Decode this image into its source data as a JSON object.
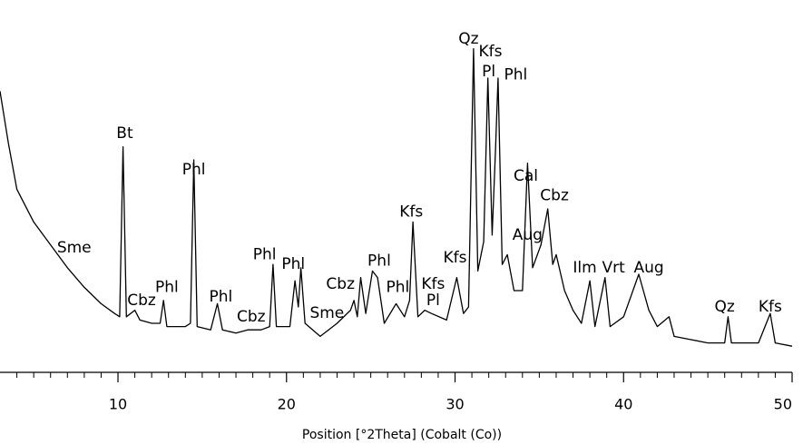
{
  "chart_data": {
    "type": "line",
    "xlabel": "Position [°2Theta] (Cobalt (Co))",
    "xlim": [
      3,
      50
    ],
    "xticks": [
      10,
      20,
      30,
      40,
      50
    ],
    "minor_xticks": [
      4,
      5,
      6,
      7,
      8,
      9,
      11,
      12,
      13,
      14,
      15,
      16,
      17,
      18,
      19,
      21,
      22,
      23,
      24,
      25,
      26,
      27,
      28,
      29,
      31,
      32,
      33,
      34,
      35,
      36,
      37,
      38,
      39,
      41,
      42,
      43,
      44,
      45,
      46,
      47,
      48,
      49
    ],
    "ylim": [
      0,
      110
    ],
    "color": "#000000",
    "x": [
      3,
      3.5,
      4,
      5,
      6,
      7,
      8,
      9,
      9.8,
      10.1,
      10.3,
      10.5,
      11,
      11.3,
      12,
      12.5,
      12.7,
      12.9,
      14,
      14.3,
      14.5,
      14.7,
      15.5,
      15.9,
      16.2,
      17,
      17.7,
      18.5,
      19,
      19.2,
      19.4,
      20.2,
      20.5,
      20.7,
      20.85,
      21.1,
      22,
      23,
      23.8,
      24.0,
      24.2,
      24.4,
      24.7,
      25.1,
      25.4,
      25.8,
      26.5,
      27,
      27.3,
      27.5,
      27.8,
      28.2,
      28.6,
      29.5,
      30.1,
      30.5,
      30.8,
      31.1,
      31.35,
      31.7,
      31.95,
      32.2,
      32.4,
      32.55,
      32.8,
      33.1,
      33.5,
      34.0,
      34.3,
      34.6,
      35.1,
      35.5,
      35.8,
      36,
      36.5,
      37,
      37.5,
      38,
      38.3,
      38.9,
      39.2,
      40,
      40.9,
      41.5,
      42,
      42.7,
      43,
      44,
      45,
      46,
      46.2,
      46.4,
      47,
      48,
      48.7,
      49,
      50
    ],
    "values": [
      86,
      70,
      56,
      46,
      39,
      32,
      26,
      21,
      18,
      17,
      69,
      17,
      19,
      16,
      15,
      15,
      22,
      14,
      14,
      15,
      65,
      14,
      13,
      21,
      13,
      12,
      13,
      13,
      14,
      33,
      14,
      14,
      28,
      20,
      32,
      15,
      11,
      15,
      19,
      22,
      17,
      29,
      18,
      31,
      29,
      15,
      21,
      17,
      22,
      46,
      17,
      19,
      18,
      16,
      29,
      18,
      20,
      99,
      31,
      40,
      90,
      42,
      68,
      90,
      33,
      36,
      25,
      25,
      64,
      32,
      39,
      50,
      33,
      36,
      25,
      19,
      15,
      28,
      14,
      29,
      14,
      17,
      30,
      19,
      14,
      17,
      11,
      10,
      9,
      9,
      17,
      9,
      9,
      9,
      18,
      9,
      8
    ],
    "annotations": [
      {
        "text": "Sme",
        "x": 7.4,
        "y": 38
      },
      {
        "text": "Bt",
        "x": 10.4,
        "y": 73
      },
      {
        "text": "Cbz",
        "x": 11.4,
        "y": 22
      },
      {
        "text": "Phl",
        "x": 12.9,
        "y": 26
      },
      {
        "text": "Phl",
        "x": 14.5,
        "y": 62
      },
      {
        "text": "Phl",
        "x": 16.1,
        "y": 23
      },
      {
        "text": "Cbz",
        "x": 17.9,
        "y": 17
      },
      {
        "text": "Phl",
        "x": 18.7,
        "y": 36
      },
      {
        "text": "Phl",
        "x": 20.4,
        "y": 33
      },
      {
        "text": "Sme",
        "x": 22.4,
        "y": 18
      },
      {
        "text": "Cbz",
        "x": 23.2,
        "y": 27
      },
      {
        "text": "Phl",
        "x": 25.5,
        "y": 34
      },
      {
        "text": "Phl",
        "x": 26.6,
        "y": 26
      },
      {
        "text": "Kfs",
        "x": 27.4,
        "y": 49
      },
      {
        "text": "Kfs",
        "x": 28.7,
        "y": 27
      },
      {
        "text": "Pl",
        "x": 28.7,
        "y": 22
      },
      {
        "text": "Kfs",
        "x": 30.0,
        "y": 35
      },
      {
        "text": "Qz",
        "x": 30.8,
        "y": 102
      },
      {
        "text": "Kfs",
        "x": 32.1,
        "y": 98
      },
      {
        "text": "Pl",
        "x": 32.0,
        "y": 92
      },
      {
        "text": "Phl",
        "x": 33.6,
        "y": 91
      },
      {
        "text": "Cal",
        "x": 34.2,
        "y": 60
      },
      {
        "text": "Cbz",
        "x": 35.9,
        "y": 54
      },
      {
        "text": "Aug",
        "x": 34.3,
        "y": 42
      },
      {
        "text": "Ilm",
        "x": 37.7,
        "y": 32
      },
      {
        "text": "Vrt",
        "x": 39.4,
        "y": 32
      },
      {
        "text": "Aug",
        "x": 41.5,
        "y": 32
      },
      {
        "text": "Qz",
        "x": 46.0,
        "y": 20
      },
      {
        "text": "Kfs",
        "x": 48.7,
        "y": 20
      }
    ]
  }
}
